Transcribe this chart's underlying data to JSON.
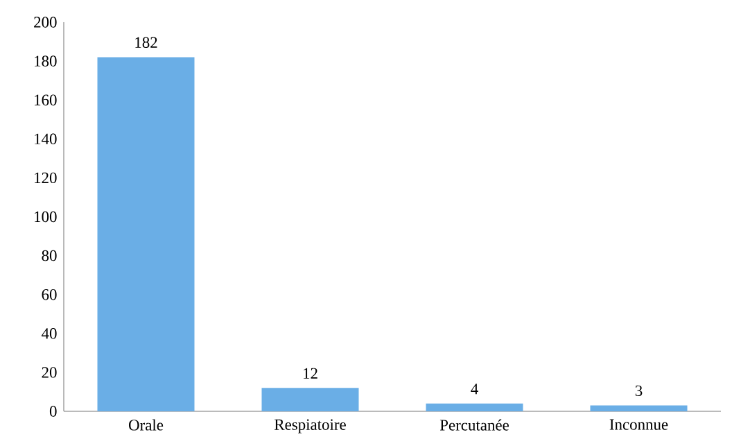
{
  "chart_data": {
    "type": "bar",
    "categories": [
      "Orale",
      "Respiatoire",
      "Percutanée",
      "Inconnue"
    ],
    "values": [
      182,
      12,
      4,
      3
    ],
    "color": "#6aaee6",
    "ylim": [
      0,
      200
    ],
    "yticks": [
      0,
      20,
      40,
      60,
      80,
      100,
      120,
      140,
      160,
      180,
      200
    ],
    "data_labels": true,
    "grid": false
  }
}
